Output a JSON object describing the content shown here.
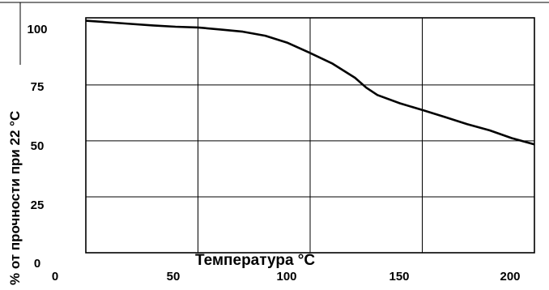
{
  "chart_data": {
    "type": "line",
    "xlabel": "Температура °C",
    "ylabel": "% от прочности при  22 °C",
    "xlim": [
      0,
      210
    ],
    "ylim": [
      0,
      105
    ],
    "x_ticks": [
      "0",
      "50",
      "100",
      "150",
      "200"
    ],
    "x_tick_values": [
      0,
      50,
      100,
      150,
      200
    ],
    "y_ticks": [
      "0",
      "25",
      "50",
      "75",
      "100"
    ],
    "y_tick_values": [
      0,
      25,
      50,
      75,
      100
    ],
    "grid": true,
    "series": [
      {
        "values": [
          [
            10,
            103.7
          ],
          [
            20,
            103.0
          ],
          [
            30,
            102.3
          ],
          [
            40,
            101.6
          ],
          [
            50,
            101.0
          ],
          [
            60,
            100.7
          ],
          [
            70,
            99.8
          ],
          [
            80,
            98.8
          ],
          [
            90,
            97.0
          ],
          [
            100,
            93.8
          ],
          [
            110,
            89.3
          ],
          [
            120,
            84.5
          ],
          [
            130,
            78.2
          ],
          [
            135,
            73.8
          ],
          [
            140,
            70.5
          ],
          [
            150,
            66.8
          ],
          [
            160,
            63.8
          ],
          [
            170,
            60.7
          ],
          [
            180,
            57.5
          ],
          [
            190,
            54.7
          ],
          [
            200,
            51.2
          ],
          [
            210,
            48.4
          ]
        ],
        "color": "#000000"
      }
    ]
  }
}
